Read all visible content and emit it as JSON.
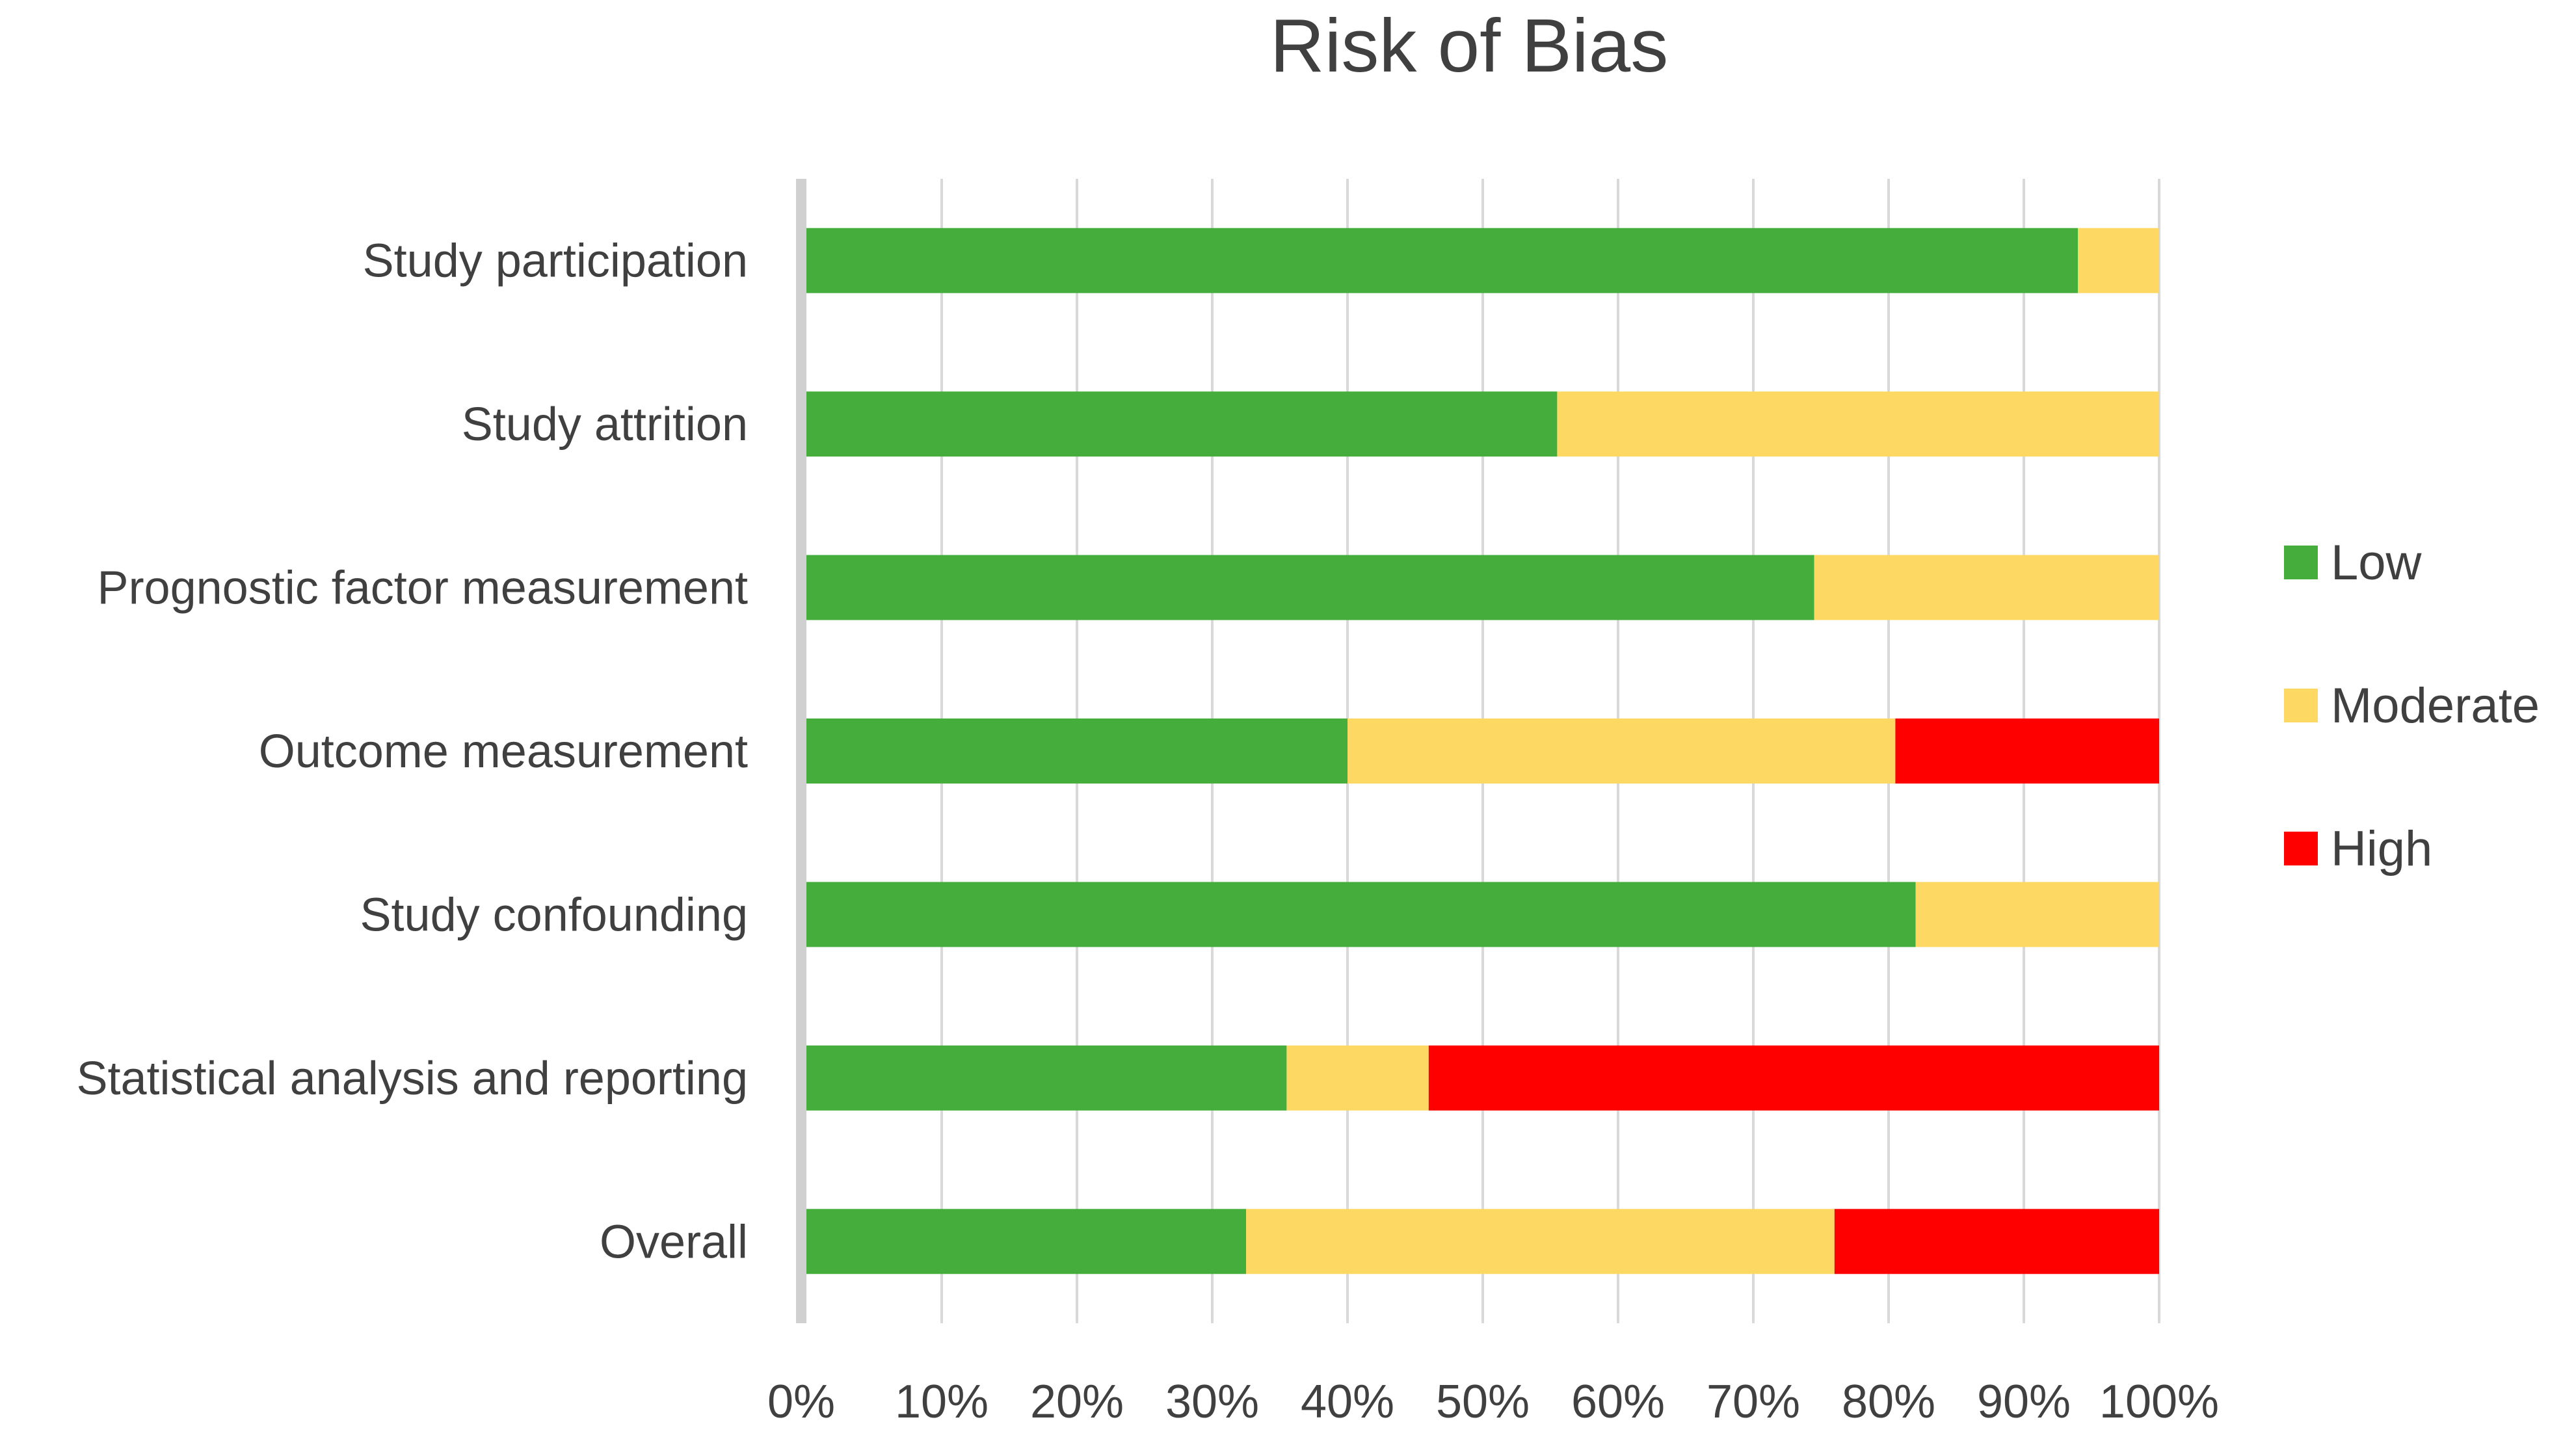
{
  "chart_data": {
    "type": "bar",
    "orientation": "horizontal",
    "stacked": "100%",
    "title": "Risk of Bias",
    "xlabel": "",
    "ylabel": "",
    "xlim": [
      0,
      100
    ],
    "grid": true,
    "legend_position": "right",
    "categories": [
      "Study participation",
      "Study attrition",
      "Prognostic factor measurement",
      "Outcome measurement",
      "Study confounding",
      "Statistical analysis and reporting",
      "Overall"
    ],
    "series": [
      {
        "name": "Low",
        "color": "#44ad3b",
        "values": [
          94,
          55.5,
          74.5,
          40,
          82,
          35.5,
          32.5
        ]
      },
      {
        "name": "Moderate",
        "color": "#fdd862",
        "values": [
          6,
          44.5,
          25.5,
          40.5,
          18,
          10.5,
          43.5
        ]
      },
      {
        "name": "High",
        "color": "#ff0000",
        "values": [
          0,
          0,
          0,
          19.5,
          0,
          54,
          24
        ]
      }
    ],
    "tick_labels": [
      "0%",
      "10%",
      "20%",
      "30%",
      "40%",
      "50%",
      "60%",
      "70%",
      "80%",
      "90%",
      "100%"
    ]
  }
}
